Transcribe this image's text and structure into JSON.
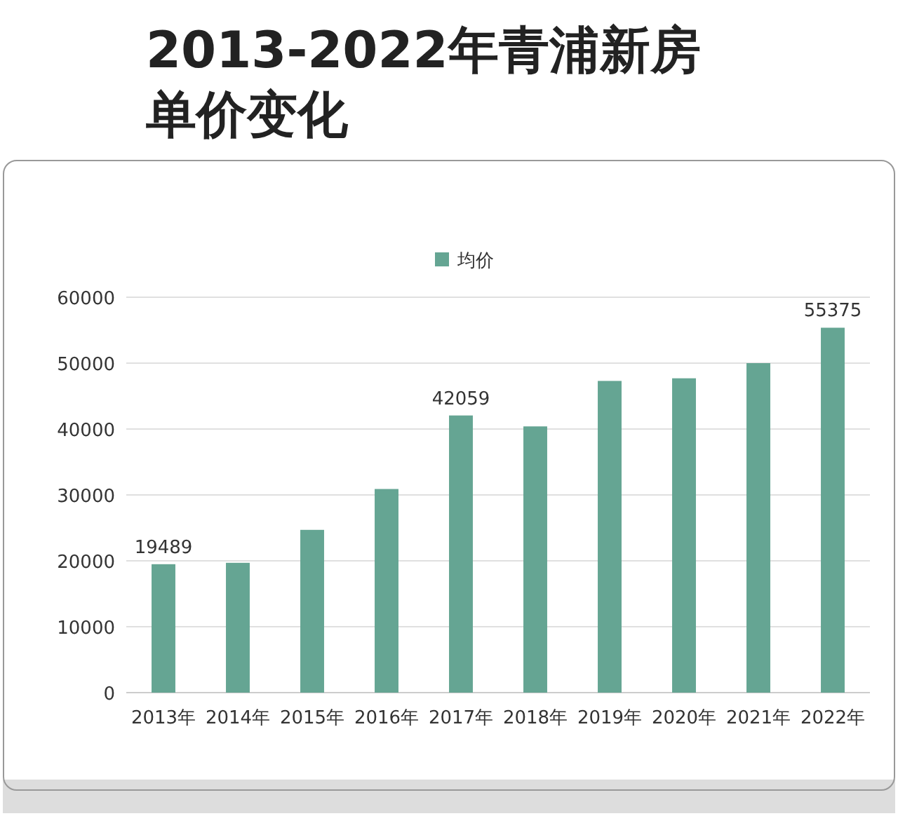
{
  "chart_data": {
    "type": "bar",
    "title": "2013-2022年青浦新房单价变化",
    "categories": [
      "2013年",
      "2014年",
      "2015年",
      "2016年",
      "2017年",
      "2018年",
      "2019年",
      "2020年",
      "2021年",
      "2022年"
    ],
    "series": [
      {
        "name": "均价",
        "color": "#65a593",
        "values": [
          19489,
          19700,
          24700,
          30900,
          42059,
          40400,
          47300,
          47700,
          50000,
          55375
        ],
        "value_labels": [
          "19489",
          null,
          null,
          null,
          "42059",
          null,
          null,
          null,
          null,
          "55375"
        ]
      }
    ],
    "ylim": [
      0,
      60000
    ],
    "yticks": [
      0,
      10000,
      20000,
      30000,
      40000,
      50000,
      60000
    ],
    "grid": "y",
    "legend": "top"
  }
}
